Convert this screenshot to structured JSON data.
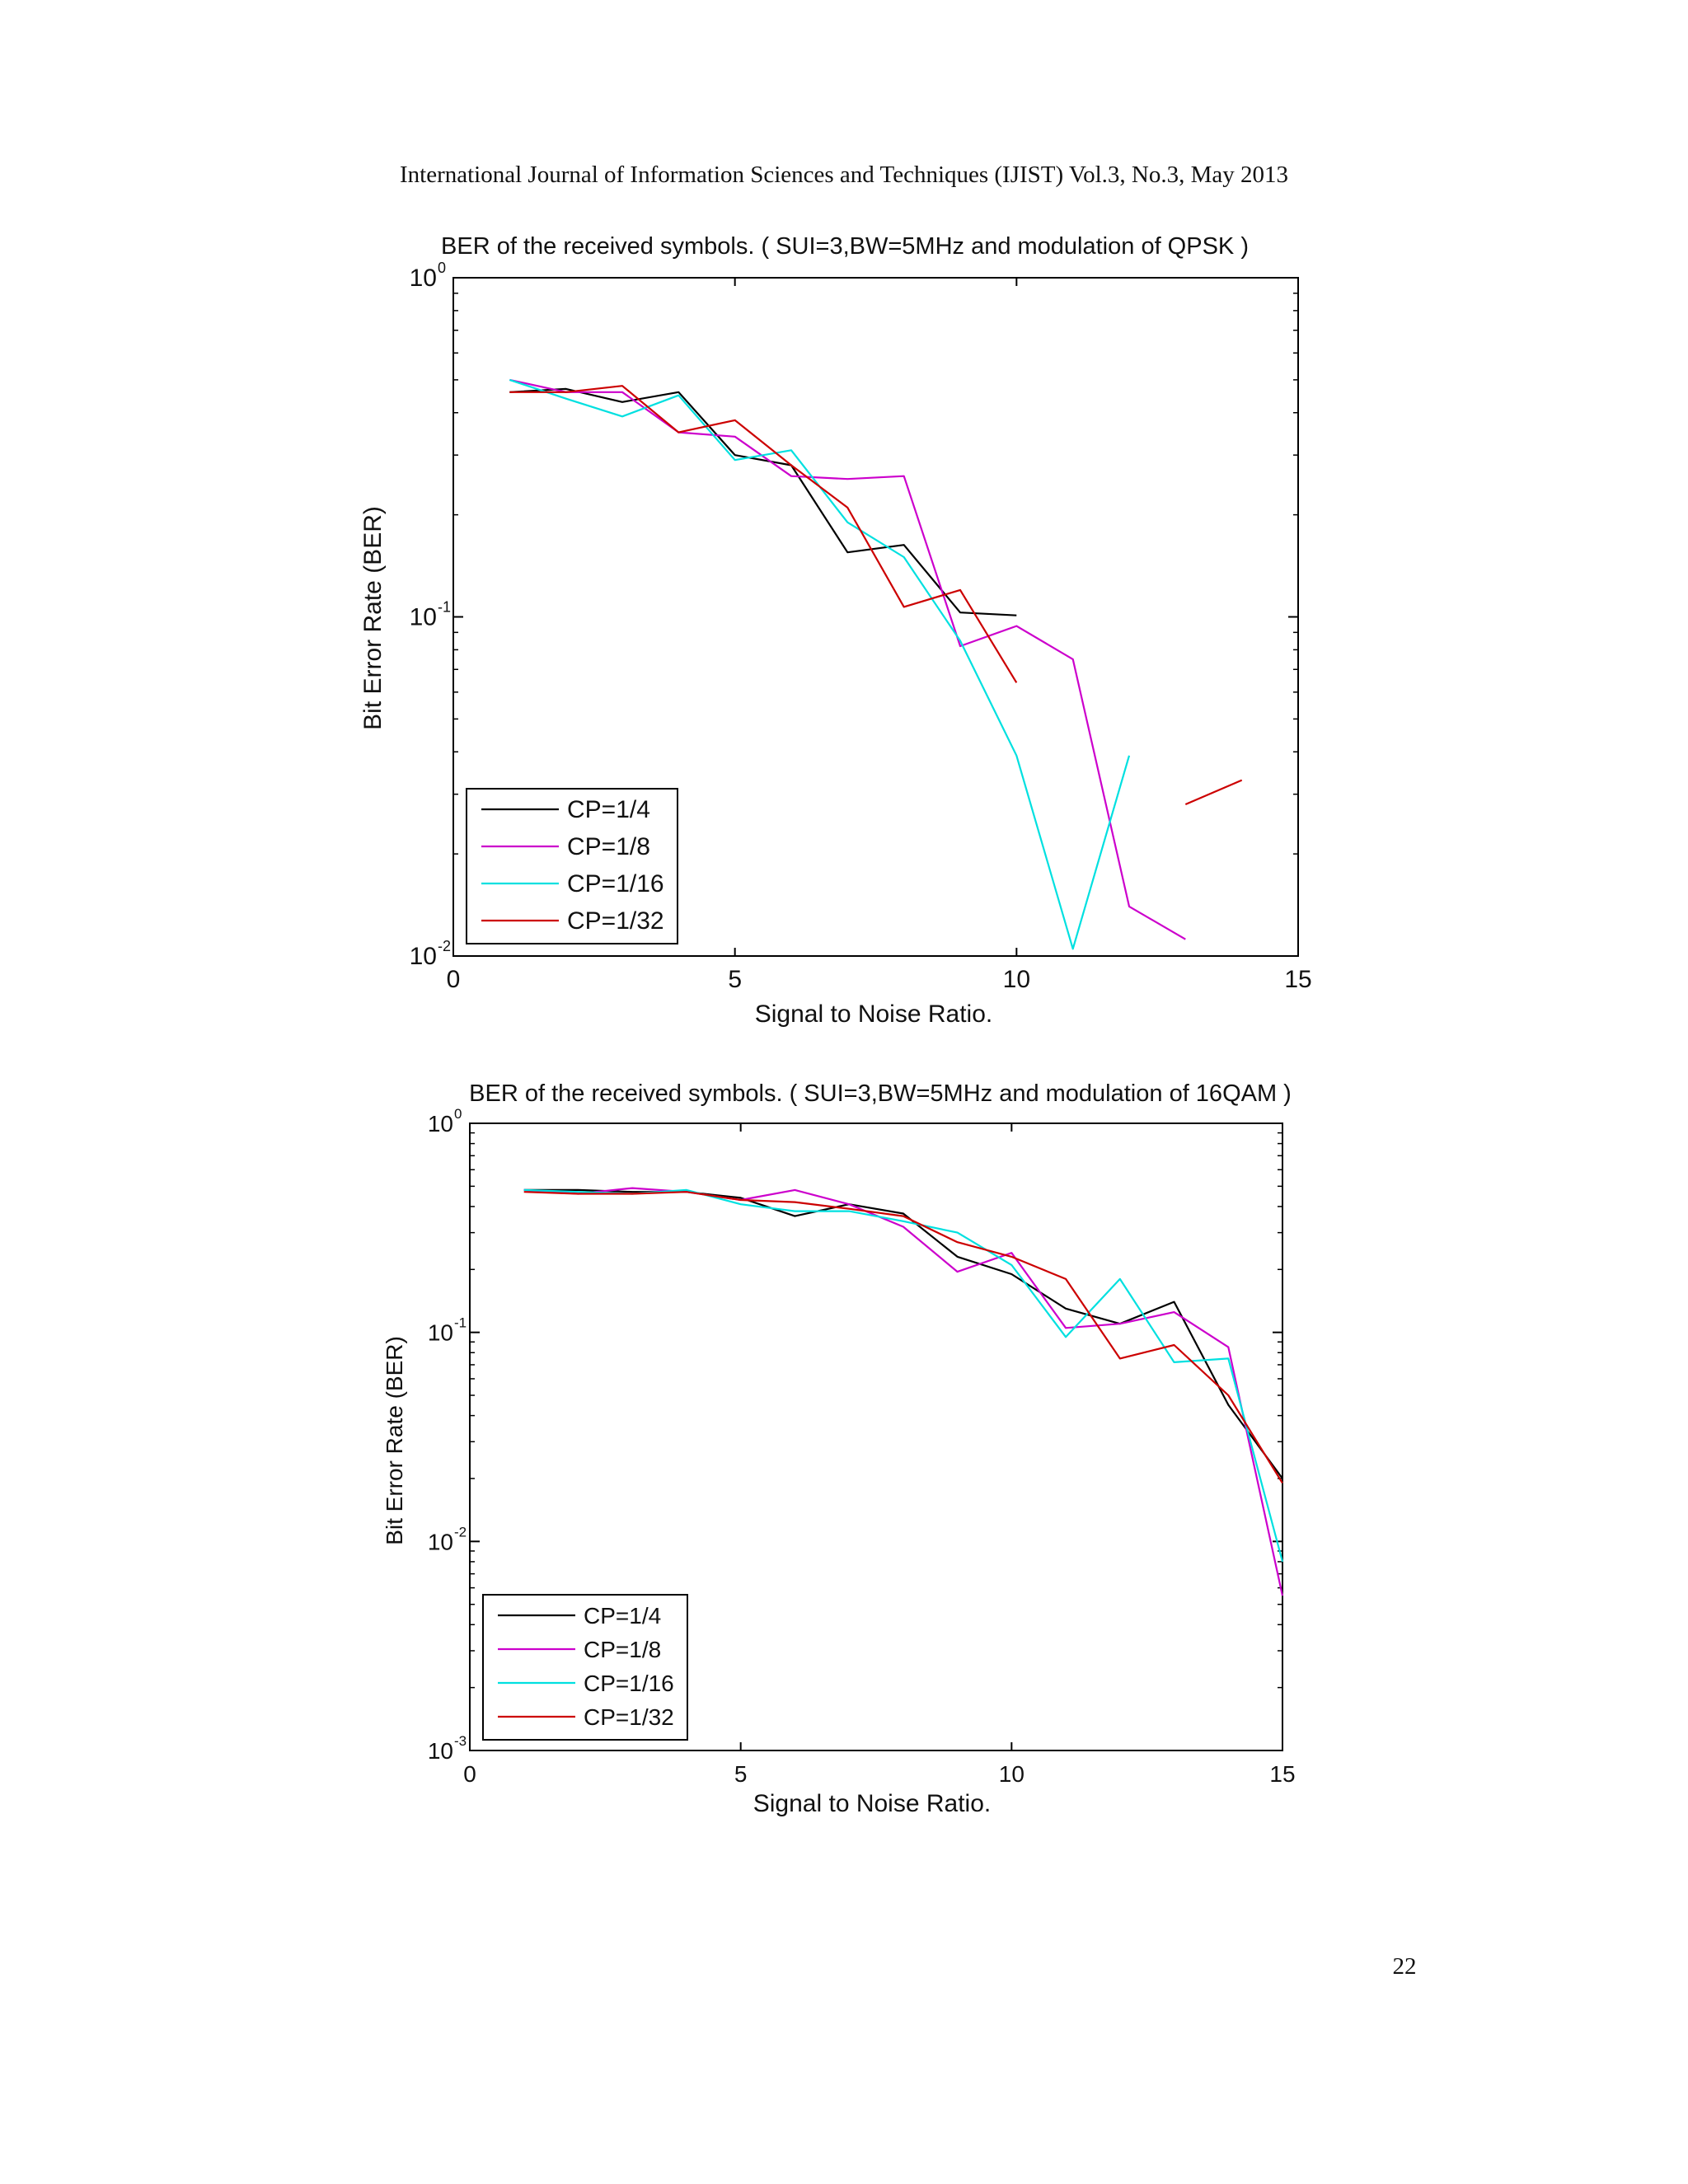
{
  "page": {
    "header": "International Journal of Information Sciences and Techniques (IJIST) Vol.3, No.3, May 2013",
    "page_number": "22"
  },
  "chart_data": [
    {
      "type": "line",
      "title": "BER of the received symbols. ( SUI=3,BW=5MHz and modulation of QPSK )",
      "xlabel": "Signal to Noise Ratio.",
      "ylabel": "Bit Error Rate (BER)",
      "xlim": [
        0,
        15
      ],
      "ylim": [
        0.01,
        1
      ],
      "yscale": "log",
      "grid": false,
      "legend_position": "bottom-left",
      "x_ticks": [
        "0",
        "5",
        "10",
        "15"
      ],
      "y_ticks": [
        {
          "base": "10",
          "exp": "0",
          "value": 1
        },
        {
          "base": "10",
          "exp": "-1",
          "value": 0.1
        },
        {
          "base": "10",
          "exp": "-2",
          "value": 0.01
        }
      ],
      "series": [
        {
          "name": "CP=1/4",
          "color": "#000000",
          "points": [
            [
              1,
              0.46
            ],
            [
              2,
              0.47
            ],
            [
              3,
              0.43
            ],
            [
              4,
              0.46
            ],
            [
              5,
              0.3
            ],
            [
              6,
              0.28
            ],
            [
              7,
              0.155
            ],
            [
              8,
              0.163
            ],
            [
              9,
              0.103
            ],
            [
              10,
              0.101
            ]
          ]
        },
        {
          "name": "CP=1/8",
          "color": "#cc00cc",
          "points": [
            [
              1,
              0.5
            ],
            [
              2,
              0.46
            ],
            [
              3,
              0.46
            ],
            [
              4,
              0.35
            ],
            [
              5,
              0.34
            ],
            [
              6,
              0.26
            ],
            [
              7,
              0.255
            ],
            [
              8,
              0.26
            ],
            [
              9,
              0.082
            ],
            [
              10,
              0.094
            ],
            [
              11,
              0.075
            ],
            [
              12,
              0.014
            ],
            [
              13,
              0.0112
            ]
          ]
        },
        {
          "name": "CP=1/16",
          "color": "#00e0e0",
          "points": [
            [
              1,
              0.5
            ],
            [
              2,
              0.44
            ],
            [
              3,
              0.39
            ],
            [
              4,
              0.45
            ],
            [
              5,
              0.29
            ],
            [
              6,
              0.31
            ],
            [
              7,
              0.19
            ],
            [
              8,
              0.15
            ],
            [
              9,
              0.085
            ],
            [
              10,
              0.039
            ],
            [
              11,
              0.0105
            ],
            [
              12,
              0.039
            ]
          ]
        },
        {
          "name": "CP=1/32",
          "color": "#cc0000",
          "points": [
            [
              1,
              0.46
            ],
            [
              2,
              0.46
            ],
            [
              3,
              0.48
            ],
            [
              4,
              0.35
            ],
            [
              5,
              0.38
            ],
            [
              6,
              0.28
            ],
            [
              7,
              0.21
            ],
            [
              8,
              0.107
            ],
            [
              9,
              0.12
            ],
            [
              10,
              0.064
            ],
            [
              null,
              null
            ],
            [
              13,
              0.028
            ],
            [
              14,
              0.033
            ]
          ]
        }
      ]
    },
    {
      "type": "line",
      "title": "BER of the received symbols. ( SUI=3,BW=5MHz and modulation of 16QAM )",
      "xlabel": "Signal to Noise Ratio.",
      "ylabel": "Bit Error Rate (BER)",
      "xlim": [
        0,
        15
      ],
      "ylim": [
        0.001,
        1
      ],
      "yscale": "log",
      "grid": false,
      "legend_position": "bottom-left",
      "x_ticks": [
        "0",
        "5",
        "10",
        "15"
      ],
      "y_ticks": [
        {
          "base": "10",
          "exp": "0",
          "value": 1
        },
        {
          "base": "10",
          "exp": "-1",
          "value": 0.1
        },
        {
          "base": "10",
          "exp": "-2",
          "value": 0.01
        },
        {
          "base": "10",
          "exp": "-3",
          "value": 0.001
        }
      ],
      "series": [
        {
          "name": "CP=1/4",
          "color": "#000000",
          "points": [
            [
              1,
              0.48
            ],
            [
              2,
              0.48
            ],
            [
              3,
              0.47
            ],
            [
              4,
              0.47
            ],
            [
              5,
              0.44
            ],
            [
              6,
              0.36
            ],
            [
              7,
              0.41
            ],
            [
              8,
              0.37
            ],
            [
              9,
              0.23
            ],
            [
              10,
              0.19
            ],
            [
              11,
              0.13
            ],
            [
              12,
              0.11
            ],
            [
              13,
              0.14
            ],
            [
              14,
              0.045
            ],
            [
              15,
              0.02
            ]
          ]
        },
        {
          "name": "CP=1/8",
          "color": "#cc00cc",
          "points": [
            [
              1,
              0.48
            ],
            [
              2,
              0.46
            ],
            [
              3,
              0.49
            ],
            [
              4,
              0.47
            ],
            [
              5,
              0.43
            ],
            [
              6,
              0.48
            ],
            [
              7,
              0.41
            ],
            [
              8,
              0.32
            ],
            [
              9,
              0.195
            ],
            [
              10,
              0.24
            ],
            [
              11,
              0.105
            ],
            [
              12,
              0.11
            ],
            [
              13,
              0.125
            ],
            [
              14,
              0.085
            ],
            [
              15,
              0.0055
            ]
          ]
        },
        {
          "name": "CP=1/16",
          "color": "#00e0e0",
          "points": [
            [
              1,
              0.48
            ],
            [
              2,
              0.47
            ],
            [
              3,
              0.46
            ],
            [
              4,
              0.48
            ],
            [
              5,
              0.41
            ],
            [
              6,
              0.38
            ],
            [
              7,
              0.38
            ],
            [
              8,
              0.34
            ],
            [
              9,
              0.3
            ],
            [
              10,
              0.21
            ],
            [
              11,
              0.095
            ],
            [
              12,
              0.18
            ],
            [
              13,
              0.072
            ],
            [
              14,
              0.075
            ],
            [
              15,
              0.008
            ]
          ]
        },
        {
          "name": "CP=1/32",
          "color": "#cc0000",
          "points": [
            [
              1,
              0.47
            ],
            [
              2,
              0.46
            ],
            [
              3,
              0.46
            ],
            [
              4,
              0.47
            ],
            [
              5,
              0.43
            ],
            [
              6,
              0.42
            ],
            [
              7,
              0.39
            ],
            [
              8,
              0.36
            ],
            [
              9,
              0.27
            ],
            [
              10,
              0.23
            ],
            [
              11,
              0.18
            ],
            [
              12,
              0.075
            ],
            [
              13,
              0.087
            ],
            [
              14,
              0.05
            ],
            [
              15,
              0.019
            ]
          ]
        }
      ]
    }
  ]
}
